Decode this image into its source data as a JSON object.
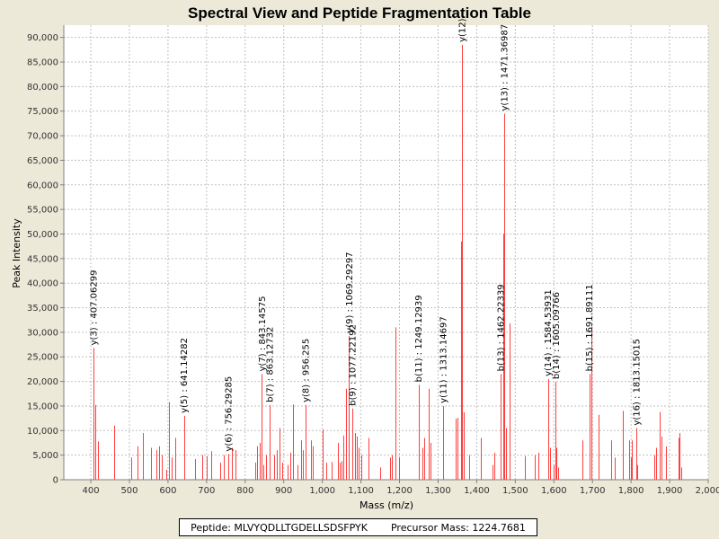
{
  "info": {
    "peptide_text": "Peptide: MLVYQDLLTGDELLSDSFPYK",
    "precursor_text": "Precursor Mass: 1224.7681"
  },
  "colors": {
    "peak": "#ff4040",
    "grid": "#c0c0c0",
    "plot_bg": "#ffffff",
    "page_bg": "#ece9d8"
  },
  "chart_data": {
    "type": "bar",
    "title": "Spectral View and Peptide Fragmentation Table",
    "xlabel": "Mass (m/z)",
    "ylabel": "Peak Intensity",
    "xlim": [
      330,
      2000
    ],
    "ylim": [
      0,
      92500
    ],
    "x_ticks": [
      400,
      500,
      600,
      700,
      800,
      900,
      1000,
      1100,
      1200,
      1300,
      1400,
      1500,
      1600,
      1700,
      1800,
      1900,
      2000
    ],
    "x_tick_labels": [
      "400",
      "500",
      "600",
      "700",
      "800",
      "900",
      "1,000",
      "1,100",
      "1,200",
      "1,300",
      "1,400",
      "1,500",
      "1,600",
      "1,700",
      "1,800",
      "1,900",
      "2,000"
    ],
    "y_ticks": [
      0,
      5000,
      10000,
      15000,
      20000,
      25000,
      30000,
      35000,
      40000,
      45000,
      50000,
      55000,
      60000,
      65000,
      70000,
      75000,
      80000,
      85000,
      90000
    ],
    "y_tick_labels": [
      "0",
      "5,000",
      "10,000",
      "15,000",
      "20,000",
      "25,000",
      "30,000",
      "35,000",
      "40,000",
      "45,000",
      "50,000",
      "55,000",
      "60,000",
      "65,000",
      "70,000",
      "75,000",
      "80,000",
      "85,000",
      "90,000"
    ],
    "peaks": [
      [
        407.06,
        26800
      ],
      [
        412,
        15200
      ],
      [
        418,
        7800
      ],
      [
        460,
        11000
      ],
      [
        505,
        4500
      ],
      [
        520,
        6800
      ],
      [
        535,
        9500
      ],
      [
        555,
        6500
      ],
      [
        570,
        6000
      ],
      [
        578,
        6800
      ],
      [
        585,
        5000
      ],
      [
        595,
        2000
      ],
      [
        603,
        15800
      ],
      [
        610,
        4500
      ],
      [
        618,
        8500
      ],
      [
        641.14,
        13000
      ],
      [
        670,
        4200
      ],
      [
        688,
        5000
      ],
      [
        700,
        4800
      ],
      [
        712,
        5800
      ],
      [
        735,
        3500
      ],
      [
        745,
        5000
      ],
      [
        756.29,
        5200
      ],
      [
        765,
        6500
      ],
      [
        775,
        6000
      ],
      [
        825,
        3500
      ],
      [
        830,
        6800
      ],
      [
        837,
        7500
      ],
      [
        843.15,
        21500
      ],
      [
        847,
        3000
      ],
      [
        855,
        5000
      ],
      [
        863.13,
        15200
      ],
      [
        875,
        5000
      ],
      [
        883,
        6000
      ],
      [
        890,
        10500
      ],
      [
        897,
        3500
      ],
      [
        910,
        3000
      ],
      [
        918,
        5500
      ],
      [
        925,
        15300
      ],
      [
        935,
        3000
      ],
      [
        945,
        8000
      ],
      [
        950,
        6000
      ],
      [
        956.26,
        15200
      ],
      [
        970,
        8000
      ],
      [
        975,
        6800
      ],
      [
        1000,
        10200
      ],
      [
        1010,
        3500
      ],
      [
        1025,
        3600
      ],
      [
        1040,
        7500
      ],
      [
        1045,
        3500
      ],
      [
        1050,
        3800
      ],
      [
        1055,
        9000
      ],
      [
        1061,
        18500
      ],
      [
        1069.29,
        29300
      ],
      [
        1077.22,
        14500
      ],
      [
        1085,
        9500
      ],
      [
        1090,
        8800
      ],
      [
        1095,
        6500
      ],
      [
        1100,
        5000
      ],
      [
        1120,
        8500
      ],
      [
        1150,
        2500
      ],
      [
        1175,
        4500
      ],
      [
        1180,
        5000
      ],
      [
        1190,
        31000
      ],
      [
        1198,
        4500
      ],
      [
        1249.13,
        19300
      ],
      [
        1260,
        6500
      ],
      [
        1265,
        8500
      ],
      [
        1275,
        18500
      ],
      [
        1280,
        7500
      ],
      [
        1313.15,
        15000
      ],
      [
        1345,
        12400
      ],
      [
        1350,
        12600
      ],
      [
        1360,
        48500
      ],
      [
        1361.5,
        88500
      ],
      [
        1366,
        13700
      ],
      [
        1380,
        5000
      ],
      [
        1410,
        8500
      ],
      [
        1440,
        3000
      ],
      [
        1445,
        5500
      ],
      [
        1462.22,
        21500
      ],
      [
        1470,
        50000
      ],
      [
        1471.37,
        74500
      ],
      [
        1475,
        10500
      ],
      [
        1485,
        31800
      ],
      [
        1525,
        4800
      ],
      [
        1550,
        5000
      ],
      [
        1560,
        5500
      ],
      [
        1584.54,
        20500
      ],
      [
        1590,
        6500
      ],
      [
        1600,
        3000
      ],
      [
        1605.1,
        19900
      ],
      [
        1607,
        6500
      ],
      [
        1610,
        2500
      ],
      [
        1675,
        8000
      ],
      [
        1691.89,
        21500
      ],
      [
        1697,
        31200
      ],
      [
        1717,
        13200
      ],
      [
        1748,
        8000
      ],
      [
        1757,
        4500
      ],
      [
        1778,
        14000
      ],
      [
        1794,
        8000
      ],
      [
        1800,
        4500
      ],
      [
        1803,
        8000
      ],
      [
        1813.15,
        10500
      ],
      [
        1817,
        3000
      ],
      [
        1860,
        5000
      ],
      [
        1866,
        6500
      ],
      [
        1875,
        13800
      ],
      [
        1880,
        8800
      ],
      [
        1890,
        6800
      ],
      [
        1923,
        8500
      ],
      [
        1926,
        9500
      ],
      [
        1929,
        2500
      ]
    ],
    "labeled_peaks": [
      {
        "x": 407.06,
        "y": 26800,
        "text": "y(3) : 407.06299"
      },
      {
        "x": 641.14,
        "y": 13000,
        "text": "y(5) : 641.14282"
      },
      {
        "x": 756.29,
        "y": 5200,
        "text": "y(6) : 756.29285"
      },
      {
        "x": 843.15,
        "y": 21500,
        "text": "y(7) : 843.14575"
      },
      {
        "x": 863.13,
        "y": 15200,
        "text": "b(7) : 863.12732"
      },
      {
        "x": 956.26,
        "y": 15200,
        "text": "y(8) : 956.255"
      },
      {
        "x": 1069.29,
        "y": 29300,
        "text": "y(9) : 1069.29297"
      },
      {
        "x": 1077.22,
        "y": 14500,
        "text": "b(9) : 1077.22192"
      },
      {
        "x": 1249.13,
        "y": 19300,
        "text": "b(11) : 1249.12939"
      },
      {
        "x": 1313.15,
        "y": 15000,
        "text": "y(11) : 1313.14697"
      },
      {
        "x": 1361.5,
        "y": 88500,
        "text": "y(12)"
      },
      {
        "x": 1471.37,
        "y": 74500,
        "text": "y(13) : 1471.36987"
      },
      {
        "x": 1462.22,
        "y": 21500,
        "text": "b(13) : 1462.22339"
      },
      {
        "x": 1584.54,
        "y": 20500,
        "text": "y(14) : 1584.53931"
      },
      {
        "x": 1605.1,
        "y": 19900,
        "text": "b(14) : 1605.09766"
      },
      {
        "x": 1691.89,
        "y": 21500,
        "text": "b(15) : 1691.89111"
      },
      {
        "x": 1813.15,
        "y": 10500,
        "text": "y(16) : 1813.15015"
      }
    ]
  }
}
